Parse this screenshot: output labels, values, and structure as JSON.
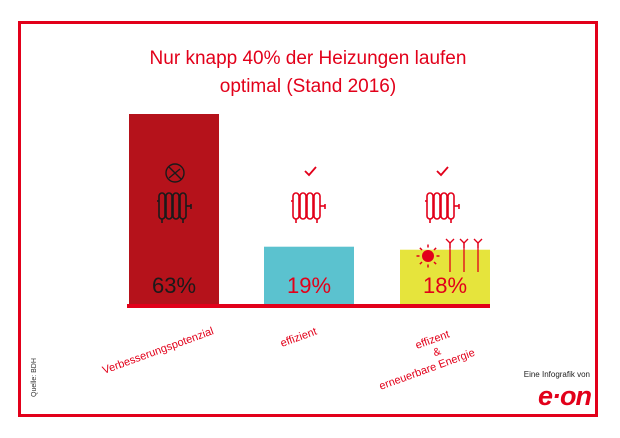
{
  "chart_data": {
    "type": "bar",
    "title": "Nur knapp 40% der Heizungen laufen optimal (Stand 2016)",
    "title_lines": [
      "Nur knapp 40% der Heizungen laufen",
      "optimal (Stand 2016)"
    ],
    "categories": [
      "Verbesserungspotenzial",
      "effizient",
      "effizient & erneuerbare Energie"
    ],
    "category_label_lines": [
      [
        "Verbesserungspotenzial"
      ],
      [
        "effizient"
      ],
      [
        "effizent",
        "&",
        "erneuerbare Energie"
      ]
    ],
    "values": [
      63,
      19,
      18
    ],
    "value_labels": [
      "63%",
      "19%",
      "18%"
    ],
    "bar_colors": [
      "#b5121b",
      "#5bc2cf",
      "#e6e43c"
    ],
    "value_label_colors": [
      "#1a1a1a",
      "#e2001a",
      "#e2001a"
    ],
    "bar_icons": [
      [
        "radiator-icon",
        "no-thermostat-icon"
      ],
      [
        "radiator-icon",
        "checkmark-icon"
      ],
      [
        "radiator-icon",
        "checkmark-icon",
        "sun-icon",
        "wind-turbine-icon"
      ]
    ],
    "ylim": [
      0,
      63
    ],
    "xlabel": "",
    "ylabel": "",
    "grid": false,
    "legend": "none"
  },
  "footer": {
    "source": "Quelle: BDH",
    "credit": "Eine Infografik von",
    "logo": "e·on"
  },
  "colors": {
    "brand": "#e2001a",
    "baseline": "#e2001a"
  }
}
